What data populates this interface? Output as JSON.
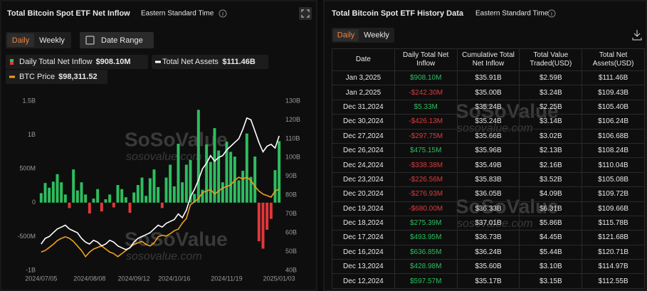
{
  "left_panel": {
    "title": "Total Bitcoin Spot ETF Net Inflow",
    "timezone": "Eastern Standard Time",
    "tabs": [
      "Daily",
      "Weekly"
    ],
    "date_range": "Date Range"
  },
  "watermark": [
    "SoSoValue",
    "sosovalue.com"
  ],
  "chart_data": {
    "type": "bar_line",
    "categories": [
      "2024/07/05",
      null,
      null,
      null,
      null,
      null,
      null,
      null,
      null,
      null,
      null,
      null,
      "2024/08/08",
      null,
      null,
      null,
      null,
      null,
      null,
      null,
      null,
      null,
      null,
      "2024/09/12",
      null,
      null,
      null,
      null,
      null,
      null,
      null,
      null,
      null,
      "2024/10/16",
      null,
      null,
      null,
      null,
      null,
      null,
      null,
      null,
      null,
      null,
      null,
      null,
      "2024/11/19",
      null,
      null,
      null,
      null,
      null,
      null,
      null,
      null,
      null,
      null,
      null,
      null,
      "2025/01/03"
    ],
    "series": [
      {
        "name": "Daily Total Net Inflow",
        "color": "#2ebd5f",
        "negative_color": "#e0383b",
        "values": [
          0.14,
          0.29,
          0.22,
          0.31,
          0.42,
          0.3,
          0.12,
          -0.08,
          0.49,
          0.18,
          0.3,
          0.12,
          -0.16,
          0.06,
          0.2,
          -0.13,
          0.05,
          0.12,
          -0.07,
          0.26,
          0.2,
          0.08,
          -0.15,
          0.15,
          0.26,
          0.37,
          0.1,
          0.36,
          0.49,
          0.23,
          -0.08,
          0.37,
          0.56,
          0.24,
          0.87,
          0.3,
          0.56,
          0.63,
          0.13,
          1.37,
          0.19,
          0.86,
          0.6,
          1.1,
          0.77,
          0.3,
          0.9,
          0.75,
          0.68,
          0.33,
          0.47,
          1.02,
          0.38,
          0.68,
          -0.57,
          -0.68,
          -0.4,
          -0.24,
          0.48,
          0.908
        ]
      },
      {
        "name": "Total Net Assets",
        "color": "#ffffff",
        "axis": "y2",
        "values": [
          54,
          57,
          58,
          60,
          62,
          63,
          64,
          62,
          61,
          60,
          57,
          55,
          54,
          56,
          55,
          53,
          54,
          56,
          55,
          53,
          52,
          51,
          52,
          55,
          57,
          58,
          59,
          60,
          62,
          64,
          63,
          65,
          66,
          67,
          70,
          68,
          72,
          79,
          83,
          88,
          94,
          97,
          101,
          98,
          100,
          101,
          104,
          106,
          108,
          110,
          115,
          121,
          120,
          114,
          108,
          103,
          106,
          107,
          105,
          111.46
        ]
      },
      {
        "name": "BTC Price",
        "color": "#f0a020",
        "axis": "y3",
        "values": [
          57000,
          58000,
          60000,
          62000,
          64500,
          66000,
          67000,
          66000,
          64000,
          61000,
          58000,
          54000,
          57000,
          59000,
          60000,
          61000,
          59000,
          57000,
          56000,
          54000,
          56000,
          58000,
          60000,
          62000,
          63000,
          64000,
          62000,
          61000,
          63000,
          67000,
          68000,
          67500,
          69000,
          71000,
          72000,
          76000,
          79000,
          88000,
          90000,
          92000,
          96000,
          97000,
          98000,
          95000,
          97000,
          99000,
          100000,
          101000,
          104000,
          106000,
          105000,
          106000,
          104000,
          100000,
          97000,
          95000,
          94000,
          93000,
          97000,
          98311.52
        ]
      }
    ],
    "legend_values": [
      "$908.10M",
      "$111.46B",
      "$98,311.52"
    ],
    "ylim": [
      -1,
      1.5
    ],
    "yticks": [
      {
        "value": -1,
        "label": "-1B"
      },
      {
        "value": -0.5,
        "label": "-500M"
      },
      0,
      {
        "value": 0.5,
        "label": "500M"
      },
      {
        "value": 1,
        "label": "1B"
      },
      {
        "value": 1.5,
        "label": "1.5B"
      }
    ],
    "y2lim": [
      40,
      130
    ],
    "y2ticks": [
      {
        "value": 40,
        "label": "40B"
      },
      {
        "value": 50,
        "label": "50B"
      },
      {
        "value": 60,
        "label": "60B"
      },
      {
        "value": 70,
        "label": "70B"
      },
      {
        "value": 80,
        "label": "80B"
      },
      {
        "value": 90,
        "label": "90B"
      },
      {
        "value": 100,
        "label": "100B"
      },
      {
        "value": 110,
        "label": "110B"
      },
      {
        "value": 120,
        "label": "120B"
      },
      {
        "value": 130,
        "label": "130B"
      }
    ],
    "y3lim": [
      45000,
      156000
    ],
    "grid": false
  },
  "right_panel": {
    "title": "Total Bitcoin Spot ETF History Data",
    "timezone": "Eastern Standard Time",
    "tabs": [
      "Daily",
      "Weekly"
    ]
  },
  "table": {
    "columns": [
      "Date",
      "Daily Total Net Inflow",
      "Cumulative Total Net Inflow",
      "Total Value Traded(USD)",
      "Total Net Assets(USD)"
    ],
    "rows": [
      [
        "Jan 3,2025",
        "$908.10M",
        "$35.91B",
        "$2.59B",
        "$111.46B"
      ],
      [
        "Jan 2,2025",
        "-$242.30M",
        "$35.00B",
        "$3.24B",
        "$109.43B"
      ],
      [
        "Dec 31,2024",
        "$5.33M",
        "$35.24B",
        "$2.25B",
        "$105.40B"
      ],
      [
        "Dec 30,2024",
        "-$426.13M",
        "$35.24B",
        "$3.14B",
        "$106.24B"
      ],
      [
        "Dec 27,2024",
        "-$297.75M",
        "$35.66B",
        "$3.02B",
        "$106.68B"
      ],
      [
        "Dec 26,2024",
        "$475.15M",
        "$35.96B",
        "$2.13B",
        "$108.24B"
      ],
      [
        "Dec 24,2024",
        "-$338.38M",
        "$35.49B",
        "$2.16B",
        "$110.04B"
      ],
      [
        "Dec 23,2024",
        "-$226.56M",
        "$35.83B",
        "$3.52B",
        "$105.08B"
      ],
      [
        "Dec 20,2024",
        "-$276.93M",
        "$36.05B",
        "$4.09B",
        "$109.72B"
      ],
      [
        "Dec 19,2024",
        "-$680.00M",
        "$36.33B",
        "$6.31B",
        "$109.66B"
      ],
      [
        "Dec 18,2024",
        "$275.39M",
        "$37.01B",
        "$5.86B",
        "$115.78B"
      ],
      [
        "Dec 17,2024",
        "$493.95M",
        "$36.73B",
        "$4.45B",
        "$121.68B"
      ],
      [
        "Dec 16,2024",
        "$636.85M",
        "$36.24B",
        "$5.44B",
        "$120.71B"
      ],
      [
        "Dec 13,2024",
        "$428.98M",
        "$35.60B",
        "$3.10B",
        "$114.97B"
      ],
      [
        "Dec 12,2024",
        "$597.57M",
        "$35.17B",
        "$3.15B",
        "$112.55B"
      ]
    ]
  }
}
